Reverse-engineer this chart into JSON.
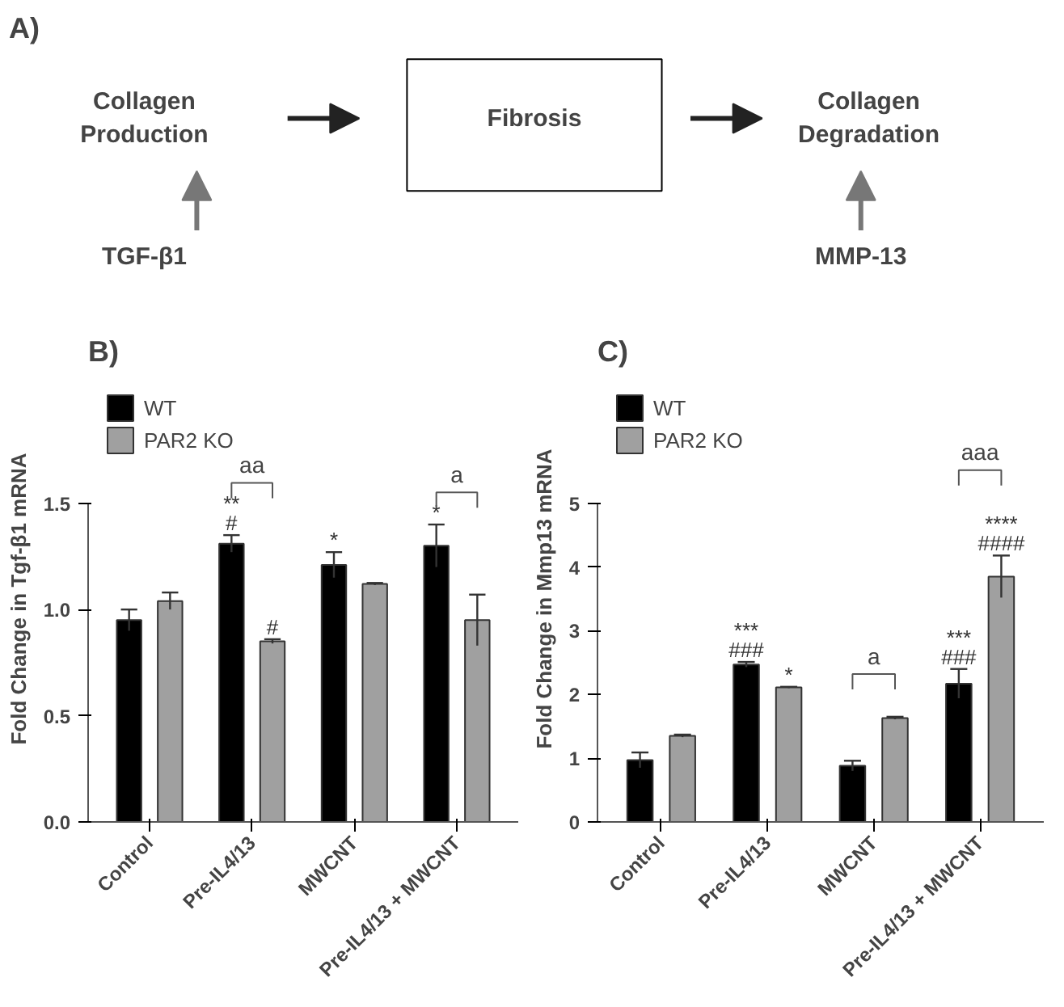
{
  "chart_data": [
    {
      "type": "other",
      "title": "A)",
      "annotations": [
        "Collagen\nProduction",
        "Fibrosis",
        "Collagen\nDegradation",
        "TGF-β1",
        "MMP-13"
      ]
    },
    {
      "type": "bar",
      "title": "B)",
      "ylabel": "Fold Change in Tgf-β1 mRNA",
      "categories": [
        "Control",
        "Pre-IL4/13",
        "MWCNT",
        "Pre-IL4/13 + MWCNT"
      ],
      "series": [
        {
          "name": "WT",
          "color": "#000000",
          "values": [
            0.95,
            1.31,
            1.21,
            1.3
          ],
          "errors": [
            0.05,
            0.04,
            0.06,
            0.1
          ],
          "value_labels": [
            null,
            "**\n#",
            "*",
            "*"
          ]
        },
        {
          "name": "PAR2 KO",
          "color": "#a0a0a0",
          "values": [
            1.04,
            0.85,
            1.12,
            0.95
          ],
          "errors": [
            0.04,
            0.01,
            0.005,
            0.12
          ],
          "value_labels": [
            null,
            "#",
            null,
            null
          ]
        }
      ],
      "ylim": [
        0,
        1.5
      ],
      "yticks": [
        {
          "value": 0,
          "label": "0.0"
        },
        {
          "value": 0.5,
          "label": "0.5"
        },
        {
          "value": 1,
          "label": "1.0"
        },
        {
          "value": 1.5,
          "label": "1.5"
        }
      ],
      "annotations": [
        "aa",
        "a"
      ],
      "grid": false,
      "legend": "top left"
    },
    {
      "type": "bar",
      "title": "C)",
      "ylabel": "Fold Change in Mmp13 mRNA",
      "categories": [
        "Control",
        "Pre-IL4/13",
        "MWCNT",
        "Pre-IL4/13 + MWCNT"
      ],
      "series": [
        {
          "name": "WT",
          "color": "#000000",
          "values": [
            0.97,
            2.47,
            0.88,
            2.17
          ],
          "errors": [
            0.12,
            0.04,
            0.08,
            0.23
          ],
          "value_labels": [
            null,
            "***\n###",
            null,
            "***\n###"
          ]
        },
        {
          "name": "PAR2 KO",
          "color": "#a0a0a0",
          "values": [
            1.35,
            2.11,
            1.63,
            3.85
          ],
          "errors": [
            0.02,
            0.01,
            0.02,
            0.33
          ],
          "value_labels": [
            null,
            "*",
            null,
            "****\n####"
          ]
        }
      ],
      "ylim": [
        0,
        5
      ],
      "yticks": [
        0,
        1,
        2,
        3,
        4,
        5
      ],
      "annotations": [
        "a",
        "aaa"
      ],
      "grid": false,
      "legend": "top left"
    }
  ]
}
